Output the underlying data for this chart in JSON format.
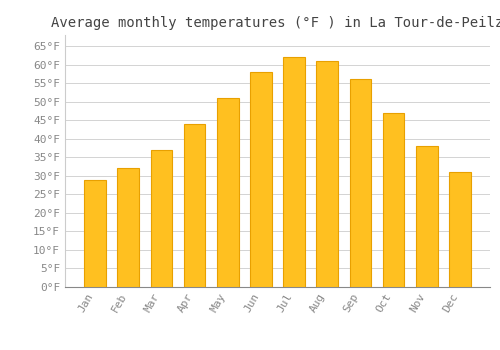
{
  "title": "Average monthly temperatures (°F ) in La Tour-de-Peilz",
  "months": [
    "Jan",
    "Feb",
    "Mar",
    "Apr",
    "May",
    "Jun",
    "Jul",
    "Aug",
    "Sep",
    "Oct",
    "Nov",
    "Dec"
  ],
  "values": [
    29,
    32,
    37,
    44,
    51,
    58,
    62,
    61,
    56,
    47,
    38,
    31
  ],
  "bar_color": "#FFC020",
  "bar_edge_color": "#E8A000",
  "background_color": "#FFFFFF",
  "grid_color": "#CCCCCC",
  "tick_label_color": "#888888",
  "title_color": "#444444",
  "ylim": [
    0,
    68
  ],
  "yticks": [
    0,
    5,
    10,
    15,
    20,
    25,
    30,
    35,
    40,
    45,
    50,
    55,
    60,
    65
  ],
  "ylabel_suffix": "°F",
  "title_fontsize": 10,
  "tick_fontsize": 8,
  "font_family": "monospace",
  "bar_width": 0.65
}
